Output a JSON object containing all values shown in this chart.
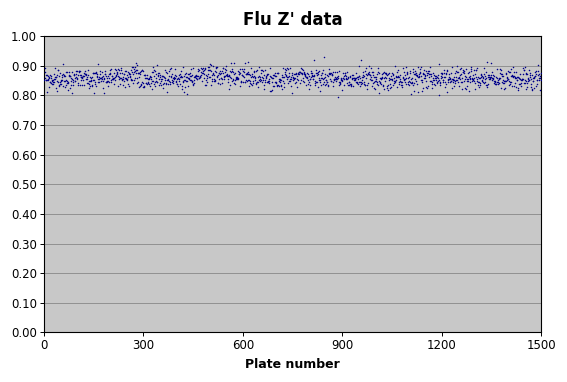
{
  "title": "Flu Z' data",
  "xlabel": "Plate number",
  "xlim": [
    0,
    1500
  ],
  "ylim": [
    0.0,
    1.0
  ],
  "yticks": [
    0.0,
    0.1,
    0.2,
    0.3,
    0.4,
    0.5,
    0.6,
    0.7,
    0.8,
    0.9,
    1.0
  ],
  "xticks": [
    0,
    300,
    600,
    900,
    1200,
    1500
  ],
  "n_points": 1500,
  "data_mean": 0.858,
  "data_std": 0.018,
  "data_lower_clip": 0.795,
  "data_upper_clip": 0.955,
  "dot_color": "#00008B",
  "dot_size": 1.2,
  "bg_color": "#C8C8C8",
  "outer_bg": "#FFFFFF",
  "title_fontsize": 12,
  "label_fontsize": 9,
  "tick_fontsize": 8.5,
  "seed": 99
}
